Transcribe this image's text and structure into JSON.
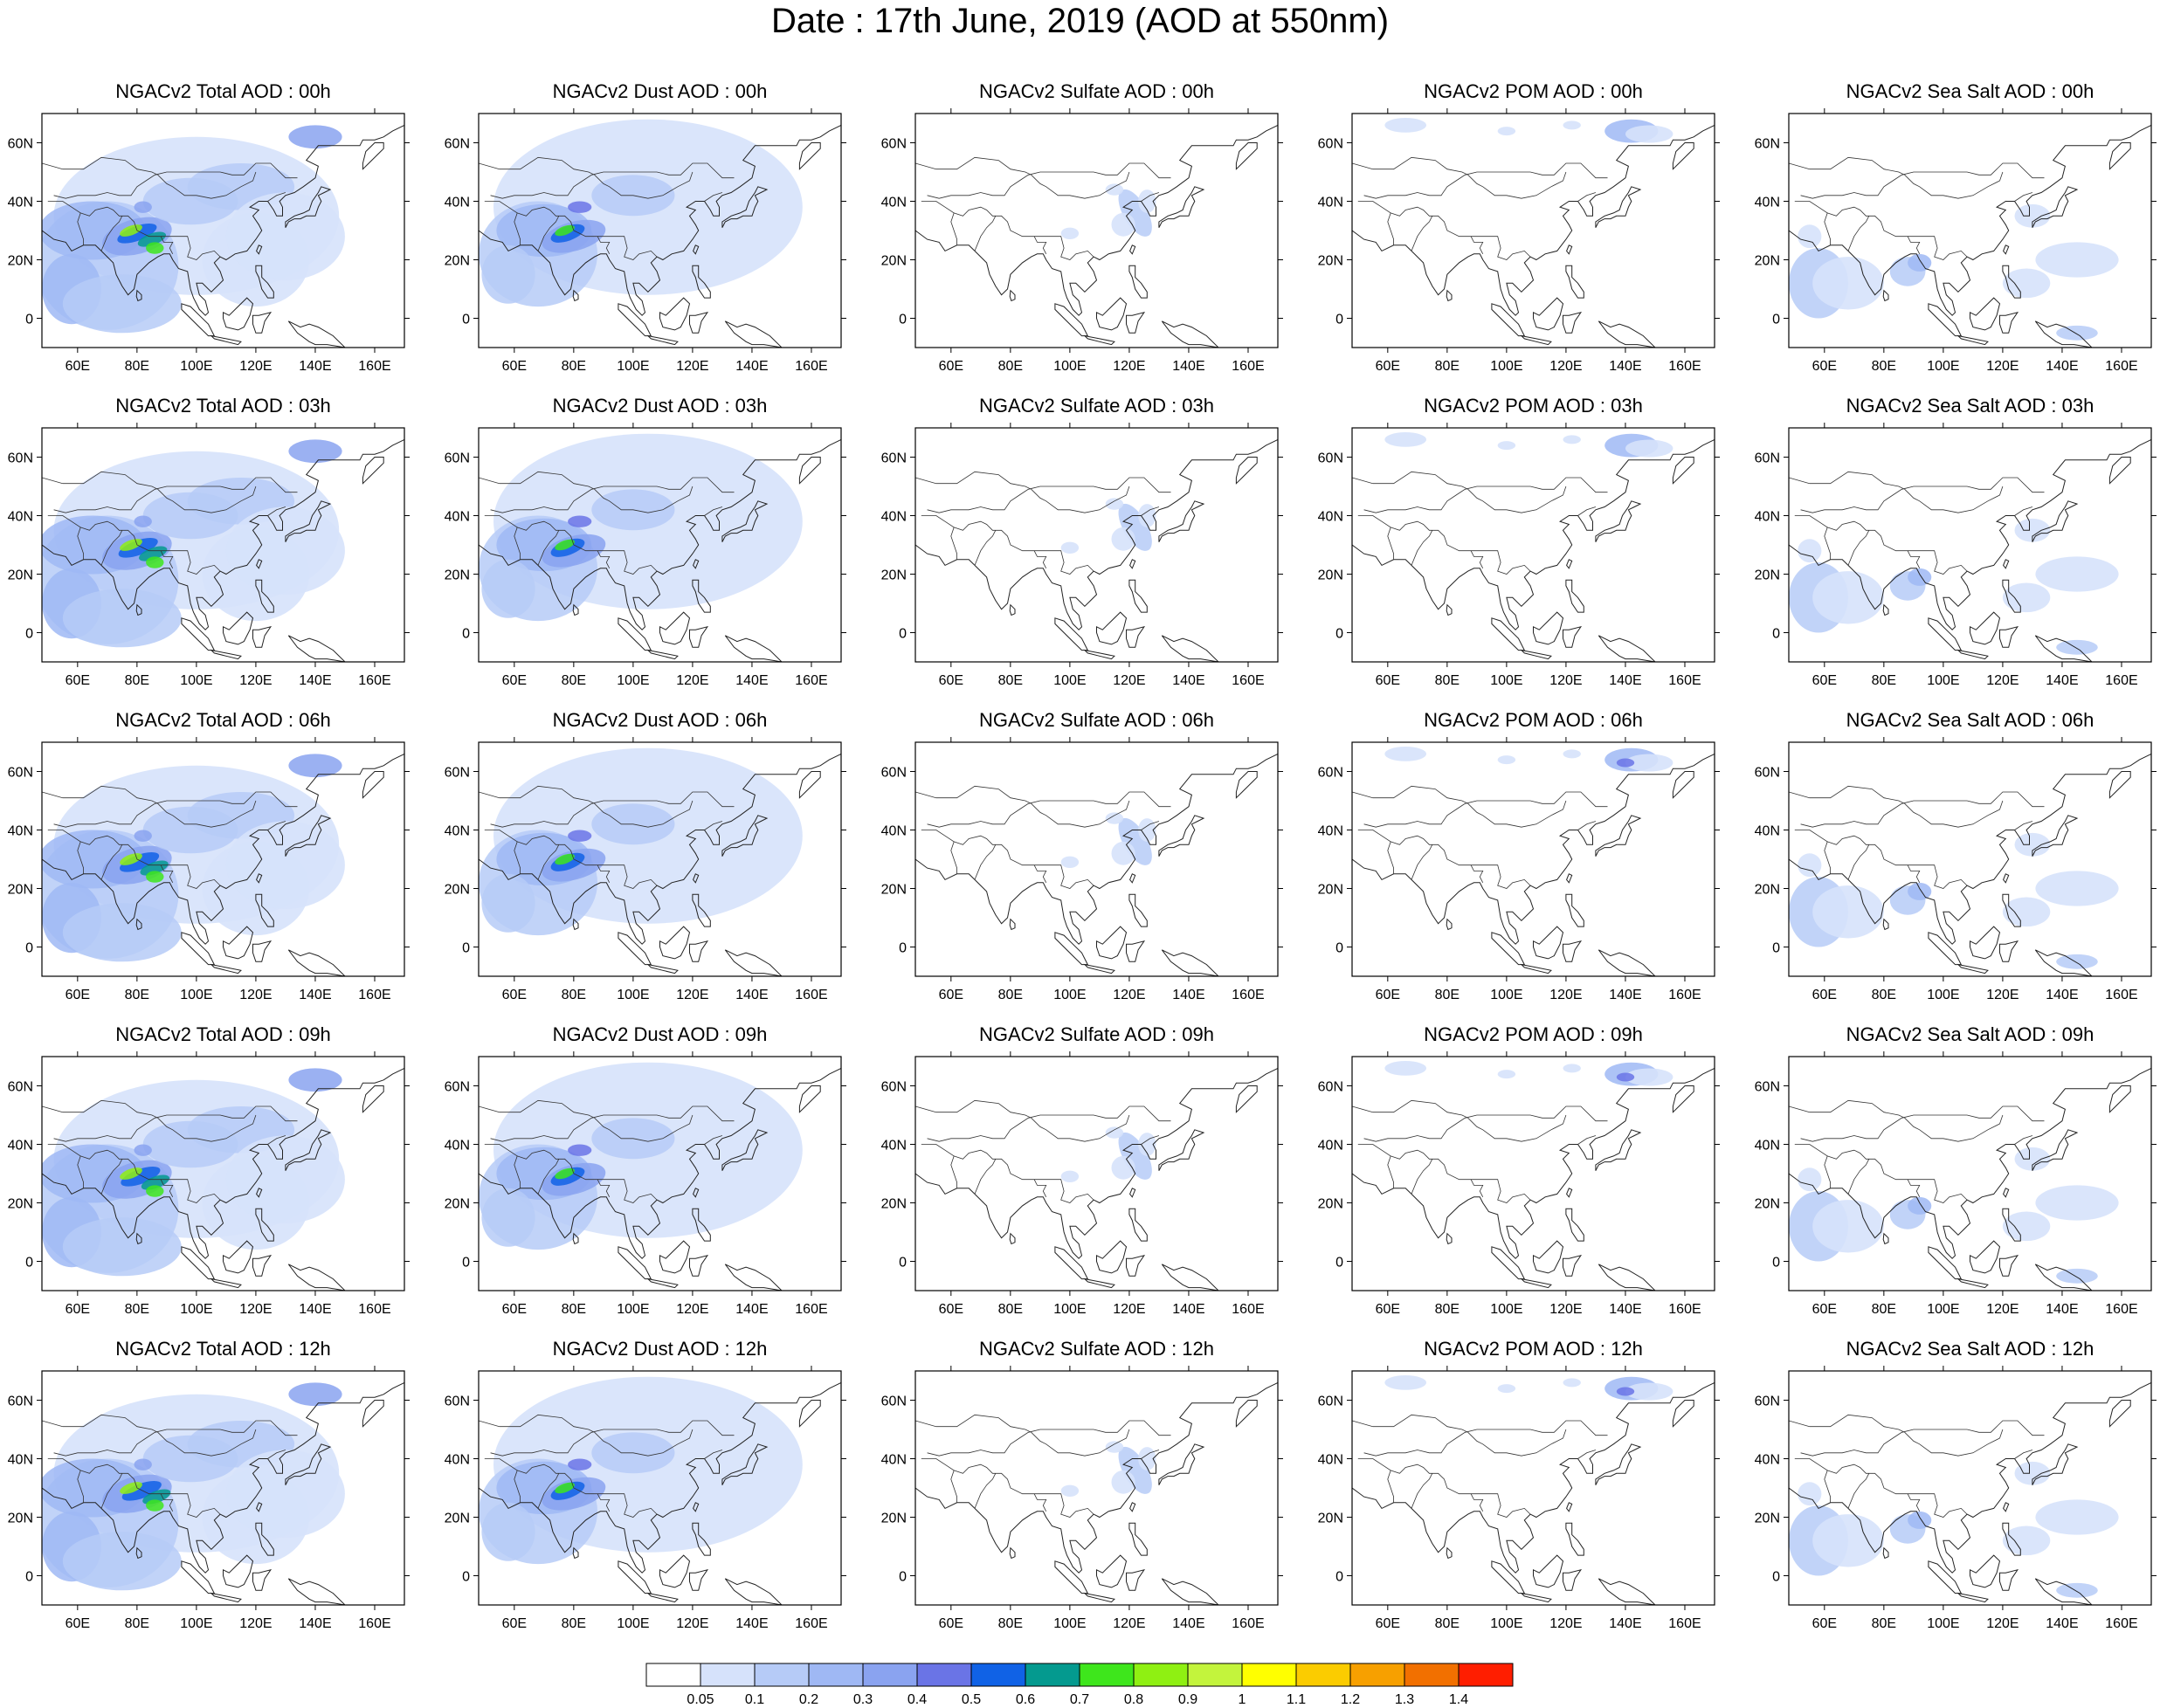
{
  "title": "Date : 17th June, 2019 (AOD at 550nm)",
  "panel_titles": [
    [
      "NGACv2 Total AOD : 00h",
      "NGACv2 Dust AOD : 00h",
      "NGACv2 Sulfate AOD : 00h",
      "NGACv2 POM AOD : 00h",
      "NGACv2 Sea Salt AOD : 00h"
    ],
    [
      "NGACv2 Total AOD : 03h",
      "NGACv2 Dust AOD : 03h",
      "NGACv2 Sulfate AOD : 03h",
      "NGACv2 POM AOD : 03h",
      "NGACv2 Sea Salt AOD : 03h"
    ],
    [
      "NGACv2 Total AOD : 06h",
      "NGACv2 Dust AOD : 06h",
      "NGACv2 Sulfate AOD : 06h",
      "NGACv2 POM AOD : 06h",
      "NGACv2 Sea Salt AOD : 06h"
    ],
    [
      "NGACv2 Total AOD : 09h",
      "NGACv2 Dust AOD : 09h",
      "NGACv2 Sulfate AOD : 09h",
      "NGACv2 POM AOD : 09h",
      "NGACv2 Sea Salt  AOD : 09h"
    ],
    [
      "NGACv2 Total AOD  : 12h",
      "NGACv2 Dust AOD : 12h",
      "NGACv2 Sulfate AOD : 12h",
      "NGACv2 POM  AOD : 12h",
      "NGACv2 Sea Salt  AOD : 12h"
    ]
  ],
  "chart_data": {
    "type": "heatmap",
    "x_ticks": [
      "60E",
      "80E",
      "100E",
      "120E",
      "140E",
      "160E"
    ],
    "x_tick_values": [
      60,
      80,
      100,
      120,
      140,
      160
    ],
    "y_ticks": [
      "60N",
      "40N",
      "20N",
      "0"
    ],
    "y_tick_values": [
      60,
      40,
      20,
      0
    ],
    "xlim": [
      48,
      170
    ],
    "ylim": [
      -10,
      70
    ],
    "colorbar": {
      "labels": [
        "0.05",
        "0.1",
        "0.2",
        "0.3",
        "0.4",
        "0.5",
        "0.6",
        "0.7",
        "0.8",
        "0.9",
        "1",
        "1.1",
        "1.2",
        "1.3",
        "1.4"
      ],
      "colors": [
        "#ffffff",
        "#d6e2fb",
        "#b6cbf7",
        "#9fb8f4",
        "#8aa3f0",
        "#6a74e6",
        "#1062e6",
        "#049a8f",
        "#3ee61c",
        "#8ff012",
        "#c3f43c",
        "#ffff00",
        "#fbcc00",
        "#f7a000",
        "#f27000",
        "#ff1e00"
      ]
    },
    "aerosol_types": [
      "Total",
      "Dust",
      "Sulfate",
      "POM",
      "Sea Salt"
    ],
    "times": [
      "00h",
      "03h",
      "06h",
      "09h",
      "12h"
    ]
  }
}
